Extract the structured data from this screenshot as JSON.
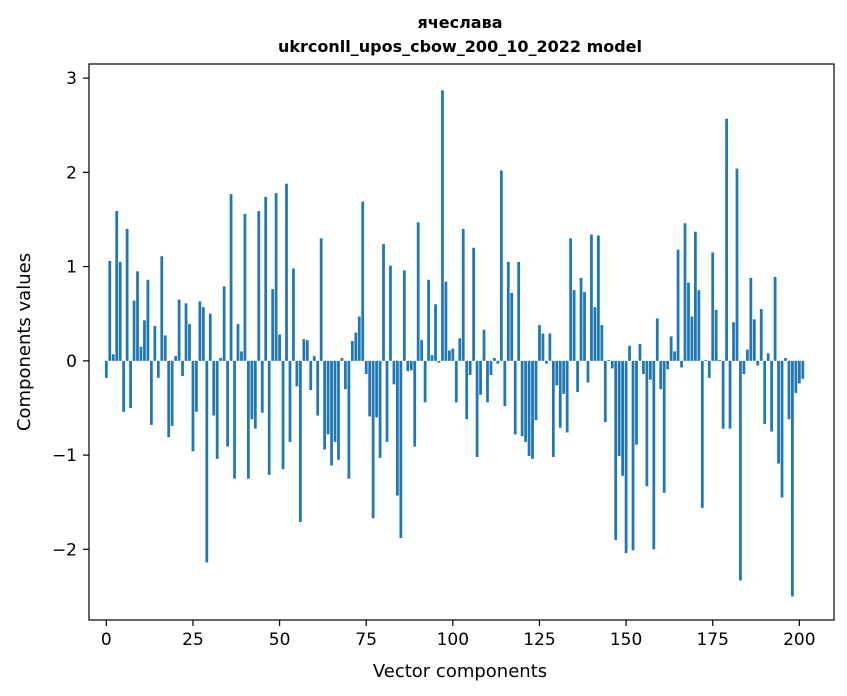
{
  "chart_data": {
    "type": "bar",
    "title_line1": "ячеслава",
    "title_line2": "ukrconll_upos_cbow_200_10_2022 model",
    "xlabel": "Vector components",
    "ylabel": "Components values",
    "xlim": [
      -5,
      210
    ],
    "ylim": [
      -2.75,
      3.15
    ],
    "xticks": [
      0,
      25,
      50,
      75,
      100,
      125,
      150,
      175,
      200
    ],
    "yticks": [
      -2,
      -1,
      0,
      1,
      2,
      3
    ],
    "bar_color": "#1f77b4",
    "grid": false,
    "legend": "none",
    "values": [
      -0.18,
      1.06,
      0.07,
      1.59,
      1.05,
      -0.54,
      1.4,
      -0.5,
      0.64,
      0.95,
      0.15,
      0.43,
      0.86,
      -0.68,
      0.37,
      -0.18,
      1.11,
      0.27,
      -0.81,
      -0.69,
      0.05,
      0.65,
      -0.16,
      0.61,
      0.39,
      -0.96,
      -0.54,
      0.63,
      0.57,
      -2.14,
      0.5,
      -0.58,
      -1.04,
      0.03,
      0.79,
      -0.91,
      1.77,
      -1.25,
      0.39,
      0.1,
      1.56,
      -1.25,
      -0.62,
      -0.72,
      1.59,
      -0.55,
      1.74,
      -1.21,
      0.76,
      1.78,
      0.28,
      -1.15,
      1.88,
      -0.86,
      0.98,
      -0.27,
      -1.71,
      0.23,
      0.22,
      -0.31,
      0.05,
      -0.58,
      1.3,
      -0.94,
      -0.78,
      -1.11,
      -0.86,
      -1.05,
      0.03,
      -0.3,
      -1.25,
      0.21,
      0.3,
      0.47,
      1.69,
      -0.14,
      -0.59,
      -1.67,
      -0.6,
      -1.03,
      1.24,
      -0.86,
      1.01,
      -0.25,
      -1.43,
      -1.88,
      0.96,
      -0.11,
      -0.1,
      -0.91,
      1.47,
      0.22,
      -0.44,
      0.86,
      0.06,
      0.6,
      -0.02,
      2.87,
      0.84,
      0.11,
      0.13,
      -0.44,
      0.24,
      1.4,
      -0.62,
      -0.15,
      1.2,
      -1.02,
      -0.36,
      0.33,
      -0.44,
      -0.15,
      0.03,
      -0.03,
      2.02,
      -0.48,
      1.05,
      0.72,
      -0.78,
      1.05,
      -0.8,
      -0.86,
      -1.01,
      -1.04,
      -0.63,
      0.38,
      0.29,
      -0.03,
      0.29,
      -1.02,
      -0.26,
      -0.71,
      -0.35,
      -0.76,
      1.3,
      0.75,
      -0.33,
      0.88,
      0.73,
      -0.23,
      1.34,
      0.57,
      1.33,
      0.38,
      -0.65,
      0.01,
      -0.08,
      -1.9,
      -1.01,
      -1.22,
      -2.04,
      0.16,
      -2.01,
      -0.89,
      0.18,
      -0.14,
      -1.33,
      -0.2,
      -2.0,
      0.45,
      -0.3,
      -1.4,
      -0.09,
      0.26,
      0.1,
      1.18,
      -0.07,
      1.46,
      0.83,
      0.47,
      1.37,
      0.75,
      -1.56,
      0.01,
      -0.18,
      1.15,
      0.54,
      0.01,
      -0.72,
      2.57,
      -0.72,
      0.41,
      2.04,
      -2.33,
      -0.14,
      0.12,
      0.88,
      0.44,
      -0.05,
      0.55,
      -0.67,
      0.08,
      -0.75,
      0.89,
      -1.09,
      -1.45,
      0.03,
      -0.62,
      -2.5,
      -0.34,
      -0.24,
      -0.19
    ]
  }
}
